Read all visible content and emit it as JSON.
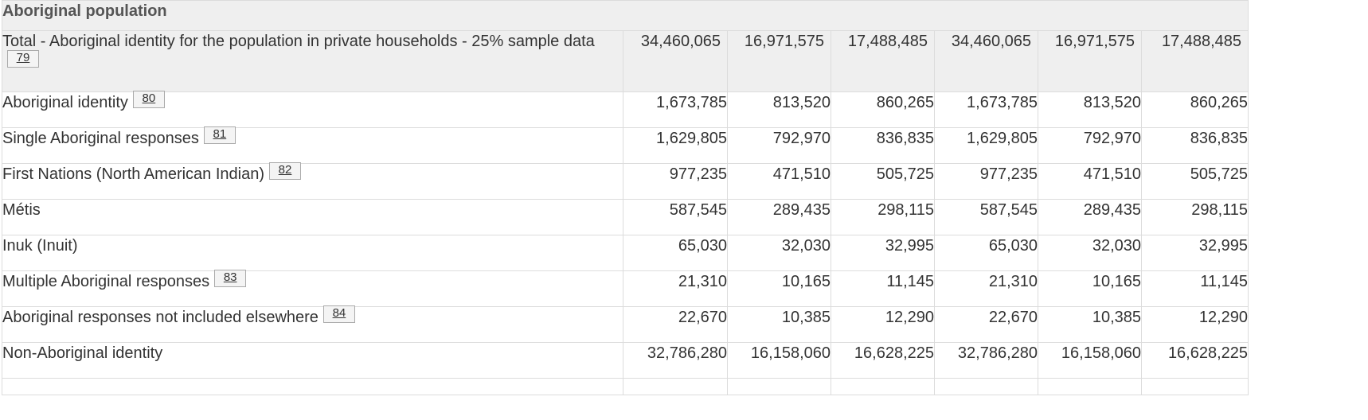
{
  "section_title": "Aboriginal population",
  "rows": [
    {
      "label": "Total - Aboriginal identity for the population in private households - 25% sample data",
      "footnote": "79",
      "values": [
        "34,460,065",
        "16,971,575",
        "17,488,485",
        "34,460,065",
        "16,971,575",
        "17,488,485"
      ]
    },
    {
      "label": "Aboriginal identity",
      "footnote": "80",
      "values": [
        "1,673,785",
        "813,520",
        "860,265",
        "1,673,785",
        "813,520",
        "860,265"
      ]
    },
    {
      "label": "Single Aboriginal responses",
      "footnote": "81",
      "values": [
        "1,629,805",
        "792,970",
        "836,835",
        "1,629,805",
        "792,970",
        "836,835"
      ]
    },
    {
      "label": "First Nations (North American Indian)",
      "footnote": "82",
      "values": [
        "977,235",
        "471,510",
        "505,725",
        "977,235",
        "471,510",
        "505,725"
      ]
    },
    {
      "label": "Métis",
      "footnote": "",
      "values": [
        "587,545",
        "289,435",
        "298,115",
        "587,545",
        "289,435",
        "298,115"
      ]
    },
    {
      "label": "Inuk (Inuit)",
      "footnote": "",
      "values": [
        "65,030",
        "32,030",
        "32,995",
        "65,030",
        "32,030",
        "32,995"
      ]
    },
    {
      "label": "Multiple Aboriginal responses",
      "footnote": "83",
      "values": [
        "21,310",
        "10,165",
        "11,145",
        "21,310",
        "10,165",
        "11,145"
      ]
    },
    {
      "label": "Aboriginal responses not included elsewhere",
      "footnote": "84",
      "values": [
        "22,670",
        "10,385",
        "12,290",
        "22,670",
        "10,385",
        "12,290"
      ]
    },
    {
      "label": "Non-Aboriginal identity",
      "footnote": "",
      "values": [
        "32,786,280",
        "16,158,060",
        "16,628,225",
        "32,786,280",
        "16,158,060",
        "16,628,225"
      ]
    }
  ]
}
